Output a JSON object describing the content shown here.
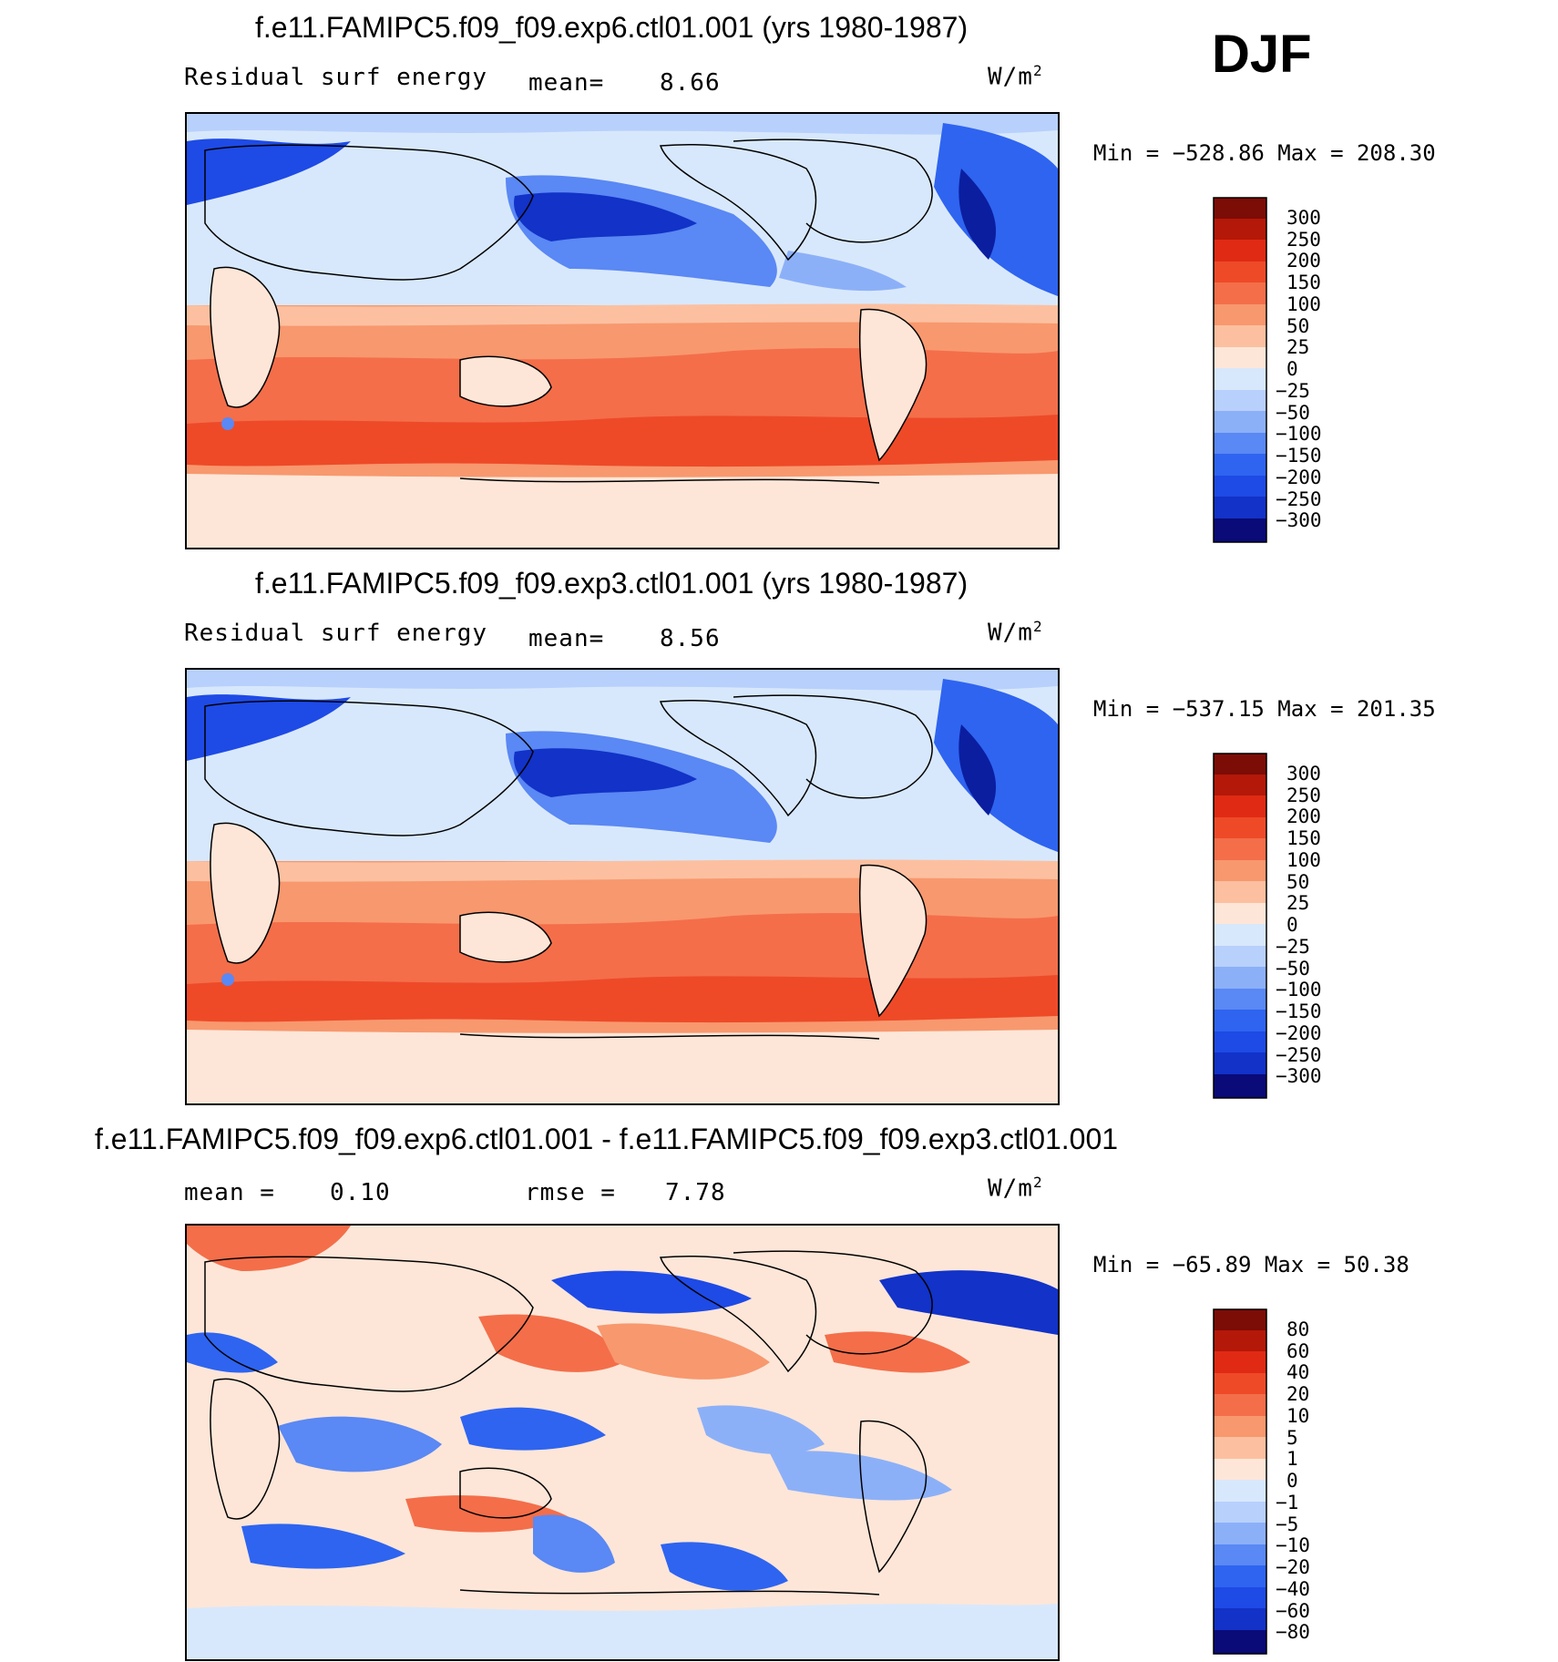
{
  "season": "DJF",
  "units_label": "W/m",
  "units_exp": "2",
  "colors": {
    "scale_main": [
      "#0a0a78",
      "#0b1ea0",
      "#1232c8",
      "#1e4ae6",
      "#2e64f0",
      "#5a88f4",
      "#8cb0f8",
      "#b8d0fc",
      "#d8e8fc",
      "#fde6d8",
      "#fcc0a0",
      "#f8986e",
      "#f46e4a",
      "#ee4a28",
      "#e02a14",
      "#b41808",
      "#7c0c06"
    ],
    "coast": "#000000"
  },
  "panels": [
    {
      "id": "top",
      "title": "f.e11.FAMIPC5.f09_f09.exp6.ctl01.001 (yrs 1980-1987)",
      "left_label": "Residual  surf  energy",
      "stat_label": "mean=",
      "stat_value": "8.66",
      "minmax": "Min  =  −528.86  Max  =  208.30"
    },
    {
      "id": "middle",
      "title": "f.e11.FAMIPC5.f09_f09.exp3.ctl01.001 (yrs 1980-1987)",
      "left_label": "Residual  surf  energy",
      "stat_label": "mean=",
      "stat_value": "8.56",
      "minmax": "Min  =  −537.15  Max  =  201.35"
    },
    {
      "id": "bottom",
      "title": "f.e11.FAMIPC5.f09_f09.exp6.ctl01.001 - f.e11.FAMIPC5.f09_f09.exp3.ctl01.001",
      "mean_label": "mean  =",
      "mean_value": "0.10",
      "rmse_label": "rmse  =",
      "rmse_value": "7.78",
      "minmax": "Min  =  −65.89  Max  =   50.38"
    }
  ],
  "chart_data": {
    "type": "heatmap",
    "title": "Residual surf energy (DJF)",
    "field": "Residual surf energy",
    "units": "W/m2",
    "projection": "cylindrical equidistant, centered 180°",
    "colorbar_levels_main": [
      "300",
      "250",
      "200",
      "150",
      "100",
      "50",
      "25",
      "0",
      "−25",
      "−50",
      "−100",
      "−150",
      "−200",
      "−250",
      "−300"
    ],
    "colorbar_levels_diff": [
      "80",
      "60",
      "40",
      "20",
      "10",
      "5",
      "1",
      "0",
      "−1",
      "−5",
      "−10",
      "−20",
      "−40",
      "−60",
      "−80"
    ],
    "panels": [
      {
        "name": "f.e11.FAMIPC5.f09_f09.exp6.ctl01.001",
        "mean": 8.66,
        "min": -528.86,
        "max": 208.3,
        "colorbar": "main"
      },
      {
        "name": "f.e11.FAMIPC5.f09_f09.exp3.ctl01.001",
        "mean": 8.56,
        "min": -537.15,
        "max": 201.35,
        "colorbar": "main"
      },
      {
        "name": "exp6 - exp3",
        "mean": 0.1,
        "rmse": 7.78,
        "min": -65.89,
        "max": 50.38,
        "colorbar": "diff"
      }
    ]
  }
}
